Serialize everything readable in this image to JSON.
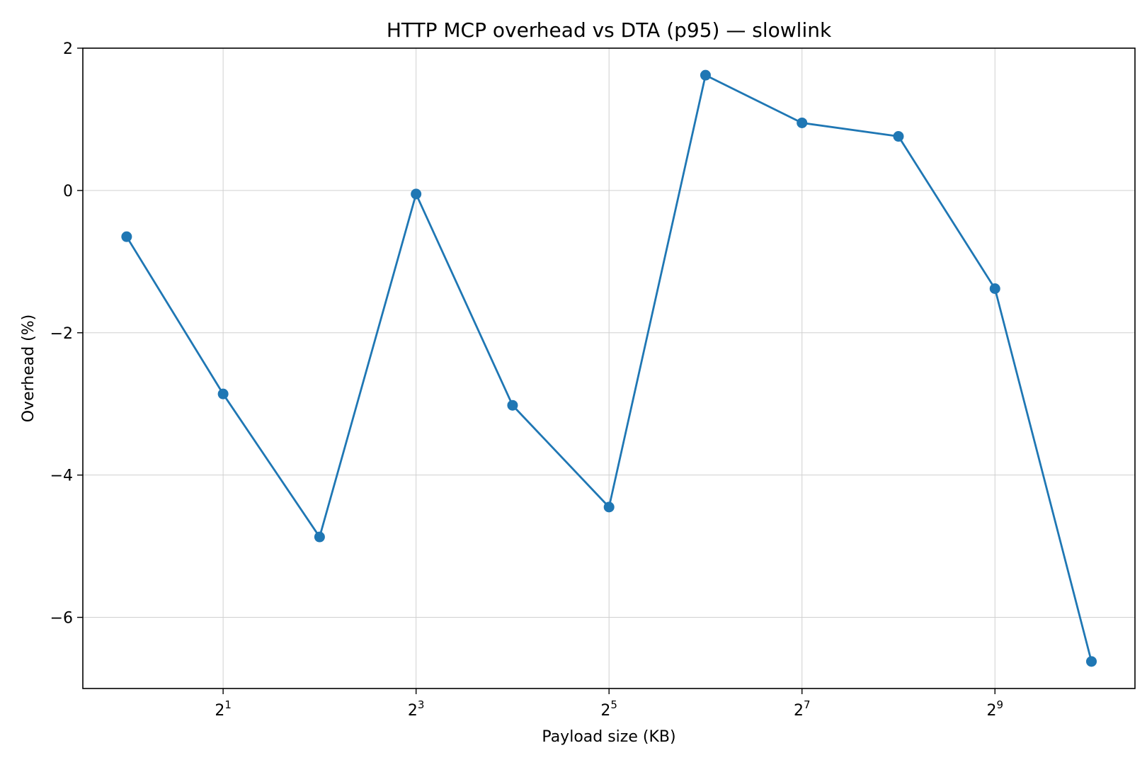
{
  "chart_data": {
    "type": "line",
    "title": "HTTP MCP overhead vs DTA (p95) — slowlink",
    "xlabel": "Payload size (KB)",
    "ylabel": "Overhead (%)",
    "x_scale": "log2",
    "xlim": [
      0.73,
      1400
    ],
    "ylim": [
      -7.0,
      2.0
    ],
    "grid": true,
    "x_ticks": [
      {
        "value": 2,
        "base": "2",
        "exp": "1"
      },
      {
        "value": 8,
        "base": "2",
        "exp": "3"
      },
      {
        "value": 32,
        "base": "2",
        "exp": "5"
      },
      {
        "value": 128,
        "base": "2",
        "exp": "7"
      },
      {
        "value": 512,
        "base": "2",
        "exp": "9"
      }
    ],
    "y_ticks": [
      {
        "value": 2,
        "label": "2"
      },
      {
        "value": 0,
        "label": "0"
      },
      {
        "value": -2,
        "label": "−2"
      },
      {
        "value": -4,
        "label": "−4"
      },
      {
        "value": -6,
        "label": "−6"
      }
    ],
    "series": [
      {
        "color": "#1f77b4",
        "marker": "circle",
        "x": [
          1,
          2,
          4,
          8,
          16,
          32,
          64,
          128,
          256,
          512,
          1024
        ],
        "y": [
          -0.65,
          -2.86,
          -4.87,
          -0.05,
          -3.02,
          -4.45,
          1.62,
          0.95,
          0.76,
          -1.38,
          -6.62
        ]
      }
    ]
  }
}
